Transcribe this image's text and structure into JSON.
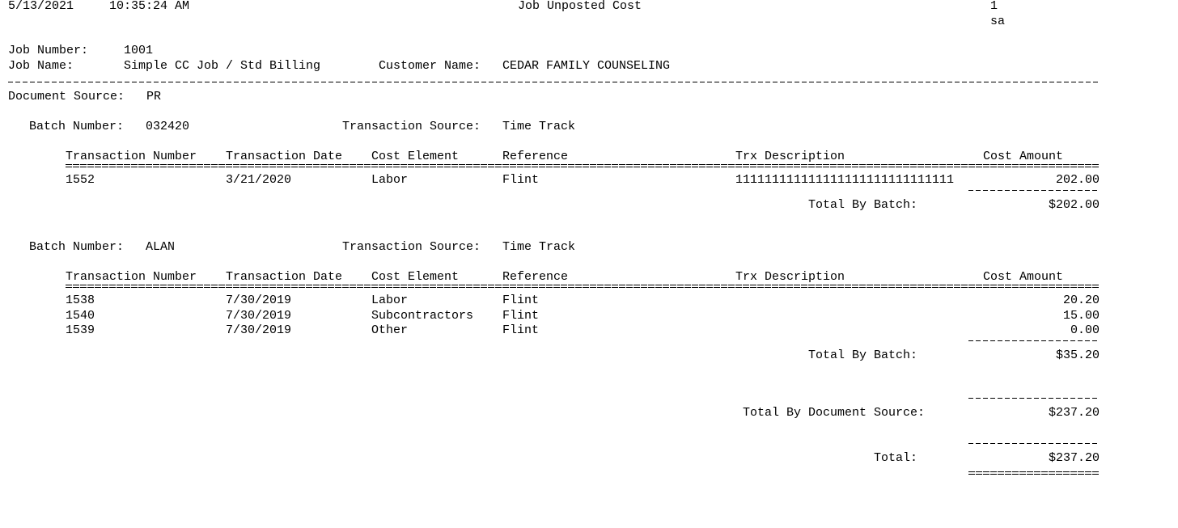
{
  "header": {
    "date": "5/13/2021",
    "time": "10:35:24 AM",
    "title": "Job Unposted Cost",
    "page": "1",
    "user": "sa"
  },
  "job": {
    "number_label": "Job Number:",
    "number": "1001",
    "name_label": "Job Name:",
    "name": "Simple CC Job / Std Billing",
    "customer_label": "Customer Name:",
    "customer": "CEDAR FAMILY COUNSELING"
  },
  "document_source": {
    "label": "Document Source:",
    "value": "PR"
  },
  "columns": [
    "Transaction Number",
    "Transaction Date",
    "Cost Element",
    "Reference",
    "Trx Description",
    "Cost Amount"
  ],
  "batch_label": "Batch Number:",
  "trx_source_label": "Transaction Source:",
  "batch_total_label": "Total By Batch:",
  "batches": [
    {
      "number": "032420",
      "trx_source": "Time Track",
      "total": "$202.00",
      "rows": [
        [
          "1552",
          "3/21/2020",
          "Labor",
          "Flint",
          "111111111111111111111111111111",
          "202.00"
        ]
      ]
    },
    {
      "number": "ALAN",
      "trx_source": "Time Track",
      "total": "$35.20",
      "rows": [
        [
          "1538",
          "7/30/2019",
          "Labor",
          "Flint",
          "",
          "20.20"
        ],
        [
          "1540",
          "7/30/2019",
          "Subcontractors",
          "Flint",
          "",
          "15.00"
        ],
        [
          "1539",
          "7/30/2019",
          "Other",
          "Flint",
          "",
          "0.00"
        ]
      ]
    }
  ],
  "doc_source_total": {
    "label": "Total By Document Source:",
    "value": "$237.20"
  },
  "grand_total": {
    "label": "Total:",
    "value": "$237.20"
  }
}
